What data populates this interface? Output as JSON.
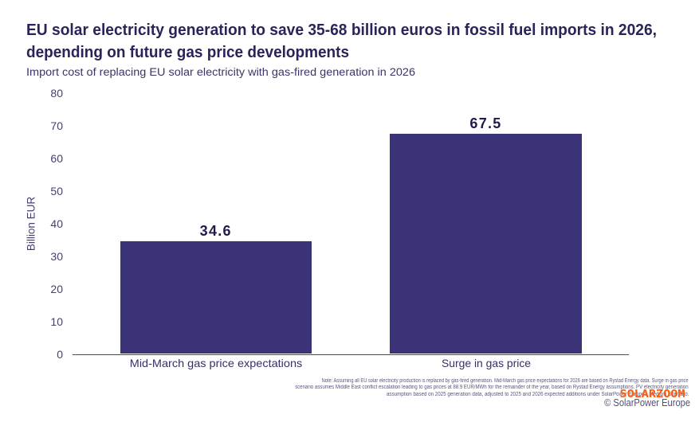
{
  "display": {
    "title_line1": "EU solar electricity generation to save 35-68 billion euros in fossil fuel imports in 2026,",
    "title_line2": "depending on future gas price developments",
    "note_lines": [
      "Note: Assuming all EU solar electricity production is replaced by gas-fired generation. Mid-March gas price expectations for 2026 are based on Rystad Energy data. Surge in gas price",
      "scenario assumes Middle East conflict escalation leading to gas prices at 88.9 EUR/MWh for the remainder of the year, based on Rystad Energy assumptions. PV electricity generation",
      "assumption based on 2025 generation data, adjusted to 2025 and 2026 expected additions under SolarPower Europe's Medium Scenario."
    ],
    "copyright": "© SolarPower Europe",
    "watermark": "SOLARZOOM"
  },
  "chart_data": {
    "type": "bar",
    "title": "EU solar electricity generation to save 35-68 billion euros in fossil fuel imports in 2026, depending on future gas price developments",
    "subtitle": "Import cost of replacing EU solar electricity with gas-fired generation in 2026",
    "categories": [
      "Mid-March gas price expectations",
      "Surge in gas price"
    ],
    "values": [
      34.6,
      67.5
    ],
    "data_labels": [
      "34.6",
      "67.5"
    ],
    "xlabel": "",
    "ylabel": "Billion EUR",
    "ylim": [
      0,
      80
    ],
    "yticks": [
      0,
      10,
      20,
      30,
      40,
      50,
      60,
      70,
      80
    ],
    "grid": false,
    "legend": false,
    "bar_color": "#3b3377",
    "value_label_color": "#201b4b",
    "watermark_color": "#ff5a0d"
  }
}
